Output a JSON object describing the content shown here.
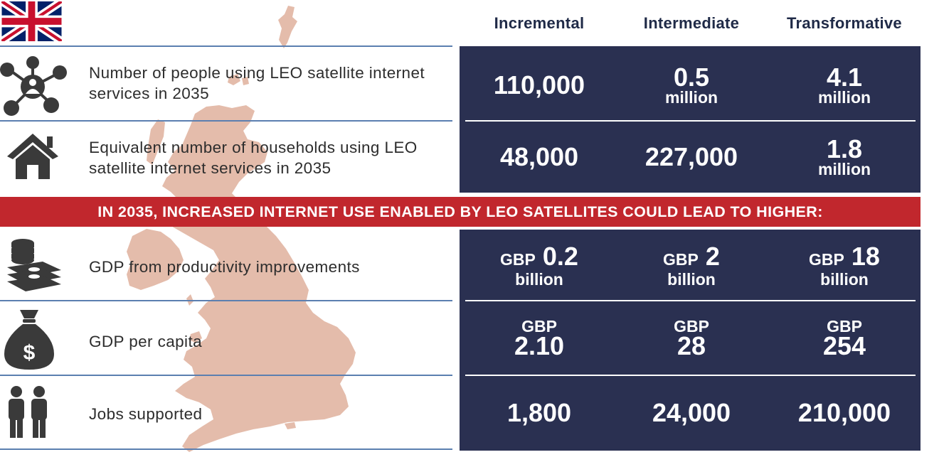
{
  "columns": {
    "incremental": "Incremental",
    "intermediate": "Intermediate",
    "transformative": "Transformative"
  },
  "rows": {
    "people": {
      "label": "Number of people using LEO satellite internet services in 2035",
      "icon": "network-person-icon",
      "incremental": {
        "main": "110,000"
      },
      "intermediate": {
        "main": "0.5",
        "unit": "million"
      },
      "transformative": {
        "main": "4.1",
        "unit": "million"
      }
    },
    "households": {
      "label": "Equivalent number of households using LEO satellite internet services in 2035",
      "icon": "house-icon",
      "incremental": {
        "main": "48,000"
      },
      "intermediate": {
        "main": "227,000"
      },
      "transformative": {
        "main": "1.8",
        "unit": "million"
      }
    },
    "gdp_productivity": {
      "label": "GDP from productivity improvements",
      "icon": "coins-cash-icon",
      "incremental": {
        "prefix": "GBP",
        "main": "0.2",
        "unit": "billion"
      },
      "intermediate": {
        "prefix": "GBP",
        "main": "2",
        "unit": "billion"
      },
      "transformative": {
        "prefix": "GBP",
        "main": "18",
        "unit": "billion"
      }
    },
    "gdp_per_capita": {
      "label": "GDP per capita",
      "icon": "money-bag-icon",
      "incremental": {
        "prefix": "GBP",
        "main": "2.10"
      },
      "intermediate": {
        "prefix": "GBP",
        "main": "28"
      },
      "transformative": {
        "prefix": "GBP",
        "main": "254"
      }
    },
    "jobs": {
      "label": "Jobs supported",
      "icon": "people-icon",
      "incremental": {
        "main": "1,800"
      },
      "intermediate": {
        "main": "24,000"
      },
      "transformative": {
        "main": "210,000"
      }
    }
  },
  "banner": "IN 2035, INCREASED INTERNET USE ENABLED BY LEO SATELLITES COULD LEAD TO HIGHER:",
  "colors": {
    "panel": "#2a3051",
    "banner": "#c1272d",
    "map": "#e4bcab",
    "rule": "#5b7fb0",
    "icon": "#3a3a3a"
  }
}
